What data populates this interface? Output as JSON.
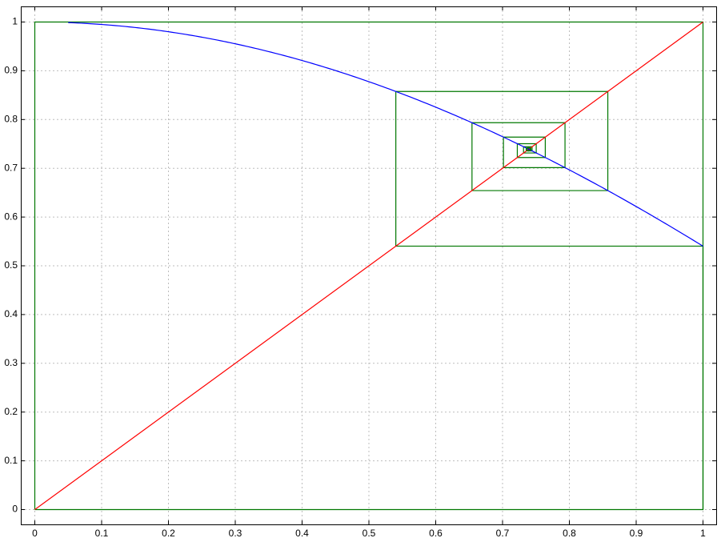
{
  "chart_data": {
    "type": "line",
    "title": "",
    "xlabel": "",
    "ylabel": "",
    "xlim": [
      0,
      1
    ],
    "ylim": [
      0,
      1
    ],
    "grid": true,
    "x_ticks": [
      "0",
      "0.1",
      "0.2",
      "0.3",
      "0.4",
      "0.5",
      "0.6",
      "0.7",
      "0.8",
      "0.9",
      "1"
    ],
    "y_ticks": [
      "0",
      "0.1",
      "0.2",
      "0.3",
      "0.4",
      "0.5",
      "0.6",
      "0.7",
      "0.8",
      "0.9",
      "1"
    ],
    "series": [
      {
        "function": "y = cos(x)",
        "x_range": [
          0.05,
          1
        ],
        "color": "#0000ff"
      },
      {
        "function": "y = x",
        "x": [
          0,
          1
        ],
        "y": [
          0,
          1
        ],
        "color": "#ff0000"
      },
      {
        "function": "cobweb iteration x(n+1) = cos(x(n))",
        "x0": 1,
        "iterations": 40,
        "start_point": [
          1,
          0
        ],
        "color": "#007700"
      },
      {
        "function": "bounding frame",
        "x": [
          0,
          0,
          1,
          1,
          0
        ],
        "y": [
          0,
          1,
          1,
          0,
          0
        ],
        "color": "#007700"
      }
    ],
    "fixed_point": 0.739,
    "colors": {
      "cos_curve": "#0000ff",
      "identity_line": "#ff0000",
      "cobweb": "#007700",
      "grid": "#bdbdbd",
      "axes": "#000000"
    }
  }
}
